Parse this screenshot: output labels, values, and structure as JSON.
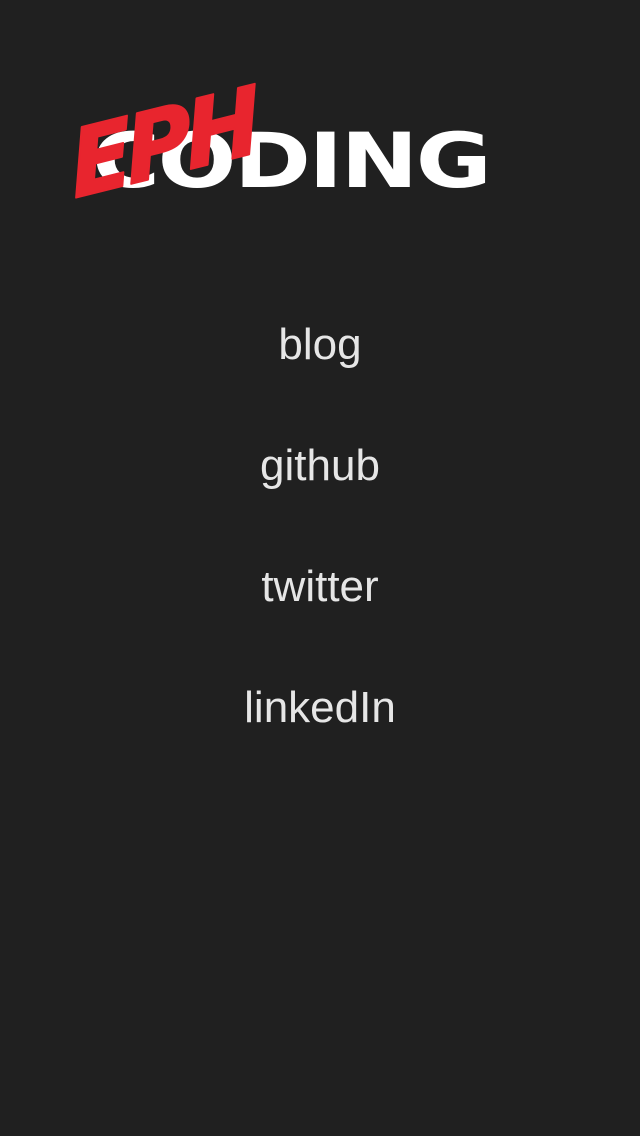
{
  "logo": {
    "accent_text": "EPH",
    "main_text": "CODING",
    "accent_color": "#e8252e",
    "main_color": "#ffffff"
  },
  "nav": {
    "links": [
      {
        "label": "blog"
      },
      {
        "label": "github"
      },
      {
        "label": "twitter"
      },
      {
        "label": "linkedIn"
      }
    ],
    "link_color": "#e6e6e6"
  },
  "page": {
    "background": "#202020"
  }
}
